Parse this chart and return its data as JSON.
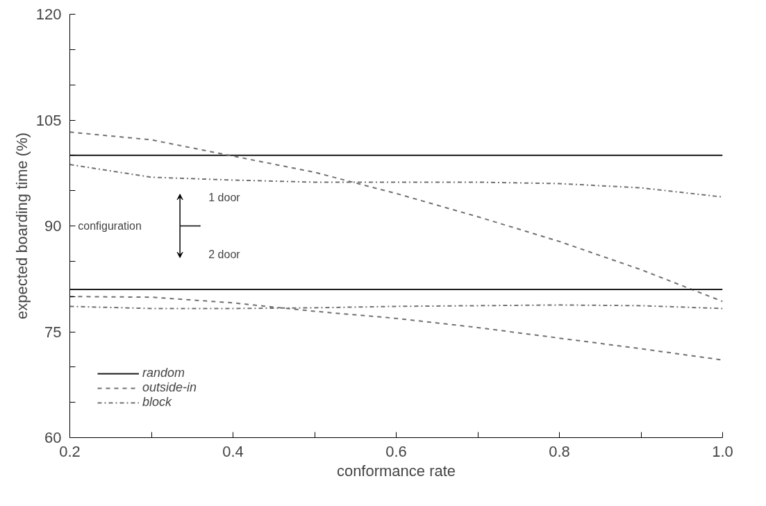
{
  "chart_data": {
    "type": "line",
    "xlabel": "conformance rate",
    "ylabel": "expected boarding time (%)",
    "x": [
      0.2,
      0.3,
      0.4,
      0.5,
      0.6,
      0.7,
      0.8,
      0.9,
      1.0
    ],
    "series": [
      {
        "name": "random",
        "color": "#1a1a1a",
        "line_style": "solid",
        "values": [
          100,
          100,
          100,
          100,
          100,
          100,
          100,
          100,
          100
        ]
      },
      {
        "name": "outside-in",
        "color": "#707070",
        "line_style": "dashed",
        "values": [
          103.3,
          102.2,
          99.9,
          97.6,
          94.6,
          91.3,
          87.8,
          83.8,
          79.3
        ]
      },
      {
        "name": "block",
        "color": "#707070",
        "line_style": "dashdot",
        "values": [
          98.7,
          96.9,
          96.5,
          96.2,
          96.2,
          96.2,
          96.0,
          95.4,
          94.1
        ]
      },
      {
        "color": "#1a1a1a",
        "line_style": "solid",
        "values": [
          81,
          81,
          81,
          81,
          81,
          81,
          81,
          81,
          81
        ]
      },
      {
        "color": "#707070",
        "line_style": "dashed",
        "values": [
          80.0,
          79.9,
          79.1,
          77.9,
          76.9,
          75.6,
          74.1,
          72.6,
          71.0
        ]
      },
      {
        "color": "#707070",
        "line_style": "dashdot",
        "values": [
          78.6,
          78.3,
          78.3,
          78.4,
          78.6,
          78.7,
          78.8,
          78.7,
          78.3
        ]
      }
    ],
    "xlim": [
      0.2,
      1.0
    ],
    "ylim": [
      60,
      120
    ],
    "xticks": [
      {
        "value": 0.2,
        "label": "0.2"
      },
      {
        "value": 0.3,
        "label": null
      },
      {
        "value": 0.4,
        "label": "0.4"
      },
      {
        "value": 0.5,
        "label": null
      },
      {
        "value": 0.6,
        "label": "0.6"
      },
      {
        "value": 0.7,
        "label": null
      },
      {
        "value": 0.8,
        "label": "0.8"
      },
      {
        "value": 0.9,
        "label": null
      },
      {
        "value": 1.0,
        "label": "1.0"
      }
    ],
    "yticks": [
      60,
      {
        "value": 65,
        "label": null
      },
      {
        "value": 70,
        "label": null
      },
      75,
      {
        "value": 80,
        "label": null
      },
      {
        "value": 85,
        "label": null
      },
      90,
      {
        "value": 95,
        "label": null
      },
      {
        "value": 100,
        "label": null
      },
      105,
      {
        "value": 110,
        "label": null
      },
      {
        "value": 115,
        "label": null
      },
      120
    ],
    "annotations": [
      "configuration",
      "1 door",
      "2 door"
    ],
    "legend": "bottom left",
    "grid": false,
    "marker": "none"
  }
}
